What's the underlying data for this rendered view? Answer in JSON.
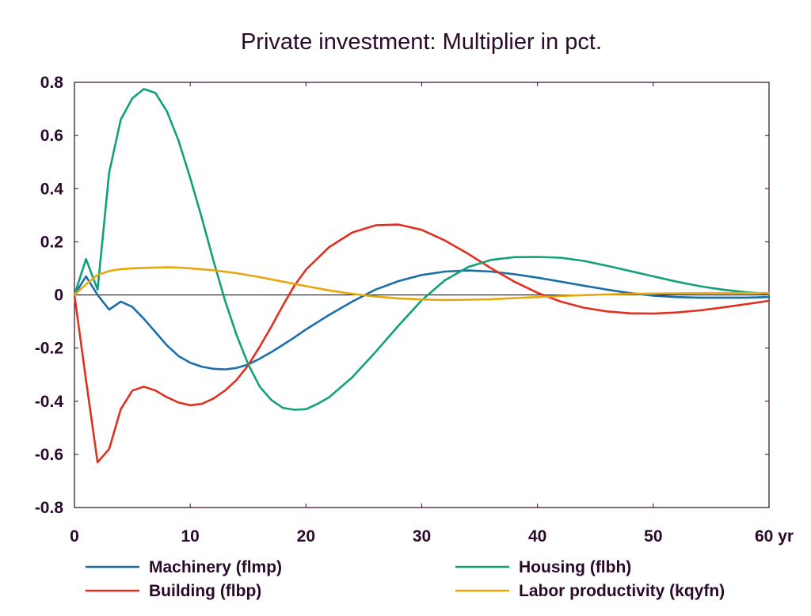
{
  "chart_data": {
    "type": "line",
    "title": "Private investment: Multiplier in pct.",
    "x_unit_label": "yr",
    "xlim": [
      0,
      60
    ],
    "ylim": [
      -0.8,
      0.8
    ],
    "x_ticks": [
      0,
      10,
      20,
      30,
      40,
      50,
      60
    ],
    "x_tick_labels": [
      "0",
      "10",
      "20",
      "30",
      "40",
      "50",
      "60 yr"
    ],
    "y_ticks": [
      -0.8,
      -0.6,
      -0.4,
      -0.2,
      0,
      0.2,
      0.4,
      0.6,
      0.8
    ],
    "y_tick_labels": [
      "-0.8",
      "-0.6",
      "-0.4",
      "-0.2",
      "0",
      "0.2",
      "0.4",
      "0.6",
      "0.8"
    ],
    "grid": false,
    "legend_position": "bottom",
    "series": [
      {
        "name": "Machinery (flmp)",
        "color": "#1a6fa8",
        "x": [
          0,
          1,
          2,
          3,
          4,
          5,
          6,
          7,
          8,
          9,
          10,
          11,
          12,
          13,
          14,
          15,
          16,
          17,
          18,
          19,
          20,
          22,
          24,
          26,
          28,
          30,
          32,
          34,
          36,
          38,
          40,
          42,
          44,
          46,
          48,
          50,
          52,
          54,
          56,
          58,
          60
        ],
        "y": [
          0,
          0.07,
          0,
          -0.055,
          -0.025,
          -0.045,
          -0.09,
          -0.14,
          -0.19,
          -0.23,
          -0.255,
          -0.27,
          -0.278,
          -0.28,
          -0.275,
          -0.262,
          -0.24,
          -0.215,
          -0.188,
          -0.16,
          -0.13,
          -0.075,
          -0.025,
          0.02,
          0.052,
          0.075,
          0.088,
          0.092,
          0.088,
          0.078,
          0.065,
          0.05,
          0.035,
          0.02,
          0.007,
          -0.003,
          -0.008,
          -0.01,
          -0.01,
          -0.01,
          -0.008
        ]
      },
      {
        "name": "Building (flbp)",
        "color": "#e03020",
        "x": [
          0,
          1,
          2,
          3,
          4,
          5,
          6,
          7,
          8,
          9,
          10,
          11,
          12,
          13,
          14,
          15,
          16,
          17,
          18,
          19,
          20,
          22,
          24,
          26,
          28,
          30,
          32,
          34,
          36,
          38,
          40,
          42,
          44,
          46,
          48,
          50,
          52,
          54,
          56,
          58,
          60
        ],
        "y": [
          0,
          -0.32,
          -0.63,
          -0.58,
          -0.43,
          -0.36,
          -0.345,
          -0.36,
          -0.385,
          -0.405,
          -0.415,
          -0.41,
          -0.39,
          -0.36,
          -0.32,
          -0.265,
          -0.195,
          -0.12,
          -0.04,
          0.035,
          0.095,
          0.18,
          0.235,
          0.262,
          0.265,
          0.245,
          0.205,
          0.155,
          0.1,
          0.05,
          0.008,
          -0.025,
          -0.048,
          -0.062,
          -0.069,
          -0.07,
          -0.066,
          -0.058,
          -0.047,
          -0.035,
          -0.022
        ]
      },
      {
        "name": "Housing (flbh)",
        "color": "#12a07a",
        "x": [
          0,
          1,
          2,
          3,
          4,
          5,
          6,
          7,
          8,
          9,
          10,
          11,
          12,
          13,
          14,
          15,
          16,
          17,
          18,
          19,
          20,
          21,
          22,
          24,
          26,
          28,
          30,
          32,
          34,
          36,
          38,
          40,
          42,
          44,
          46,
          48,
          50,
          52,
          54,
          56,
          58,
          60
        ],
        "y": [
          0,
          0.135,
          0.02,
          0.46,
          0.66,
          0.74,
          0.775,
          0.76,
          0.69,
          0.58,
          0.44,
          0.29,
          0.13,
          -0.02,
          -0.15,
          -0.26,
          -0.345,
          -0.395,
          -0.425,
          -0.432,
          -0.43,
          -0.41,
          -0.385,
          -0.31,
          -0.215,
          -0.115,
          -0.02,
          0.055,
          0.105,
          0.132,
          0.142,
          0.143,
          0.14,
          0.128,
          0.11,
          0.09,
          0.07,
          0.05,
          0.033,
          0.02,
          0.01,
          0.004
        ]
      },
      {
        "name": "Labor productivity (kqyfn)",
        "color": "#e8a70c",
        "x": [
          0,
          1,
          2,
          3,
          4,
          5,
          6,
          7,
          8,
          9,
          10,
          12,
          14,
          16,
          18,
          20,
          22,
          24,
          26,
          28,
          30,
          32,
          34,
          36,
          38,
          40,
          42,
          44,
          46,
          48,
          50,
          52,
          54,
          56,
          58,
          60
        ],
        "y": [
          0,
          0.04,
          0.075,
          0.09,
          0.097,
          0.1,
          0.102,
          0.103,
          0.104,
          0.103,
          0.1,
          0.093,
          0.082,
          0.067,
          0.05,
          0.033,
          0.017,
          0.004,
          -0.006,
          -0.013,
          -0.017,
          -0.019,
          -0.018,
          -0.016,
          -0.012,
          -0.008,
          -0.004,
          -0.001,
          0.002,
          0.004,
          0.005,
          0.006,
          0.007,
          0.007,
          0.007,
          0.007
        ]
      }
    ]
  }
}
